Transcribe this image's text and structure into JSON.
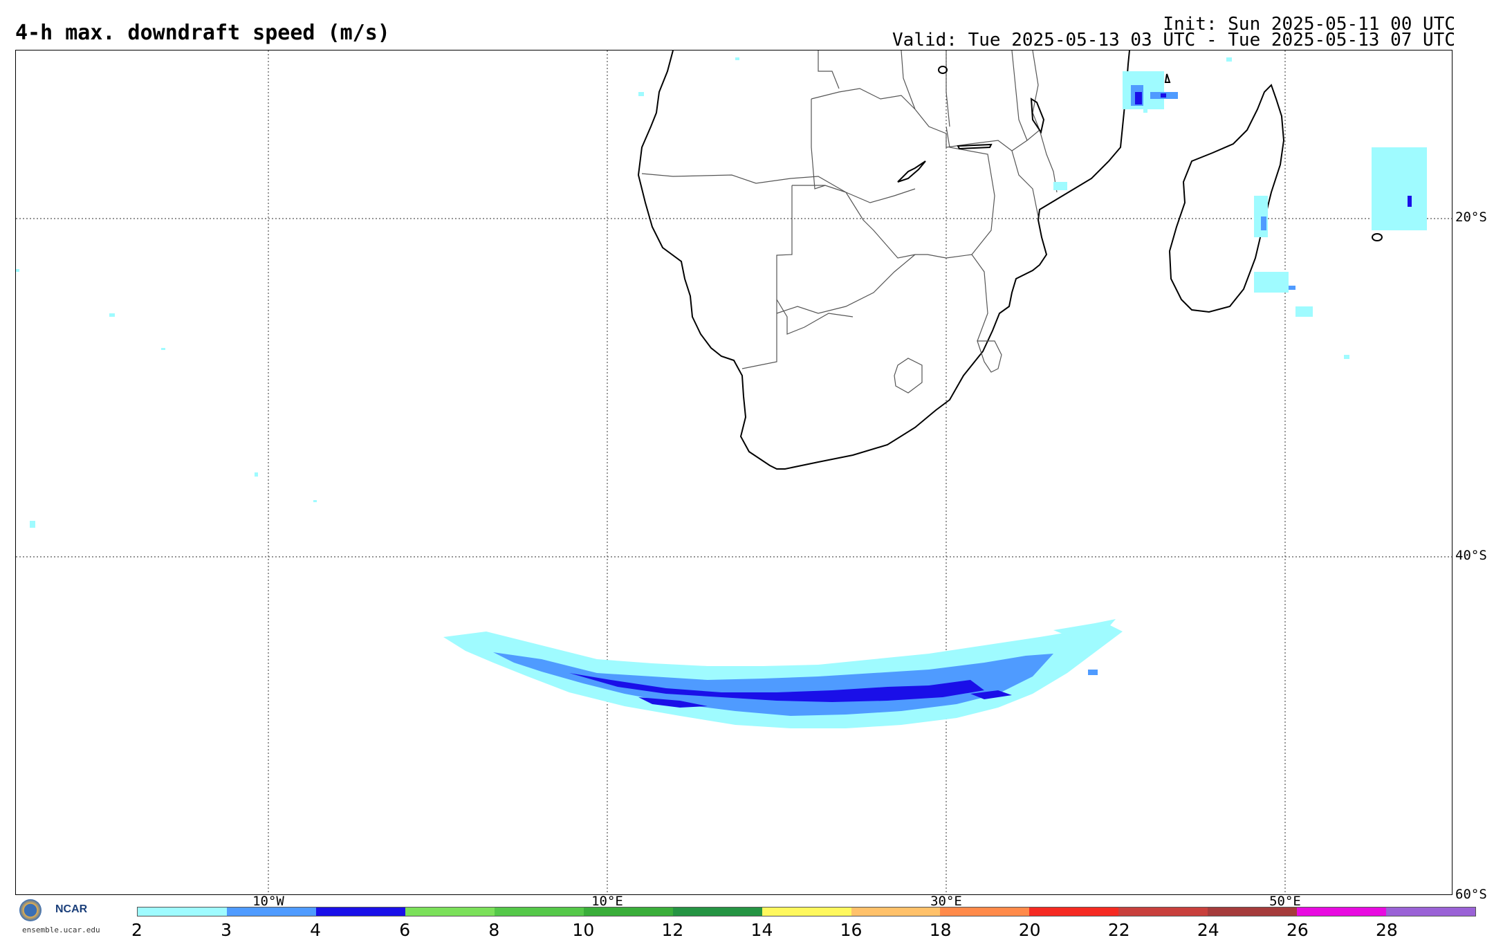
{
  "header": {
    "title": "4-h max. downdraft speed (m/s)",
    "init": "Init: Sun 2025-05-11 00 UTC",
    "valid": "Valid: Tue 2025-05-13 03 UTC - Tue 2025-05-13 07 UTC"
  },
  "map": {
    "lat_labels": [
      "20°S",
      "40°S",
      "60°S"
    ],
    "lon_labels": [
      "10°W",
      "10°E",
      "30°E",
      "50°E"
    ]
  },
  "colorbar": {
    "ticks": [
      "2",
      "3",
      "4",
      "6",
      "8",
      "10",
      "12",
      "14",
      "16",
      "18",
      "20",
      "22",
      "24",
      "26",
      "28"
    ],
    "colors": [
      "#9ffbff",
      "#4f9bff",
      "#1a0fe8",
      "#7be05a",
      "#55c849",
      "#3aae3a",
      "#259443",
      "#fff85e",
      "#ffc16a",
      "#ff8a4a",
      "#f52a22",
      "#c8403c",
      "#a53b3b",
      "#e80be0",
      "#9a62d6"
    ]
  },
  "logo": {
    "org": "NCAR",
    "url": "ensemble.ucar.edu"
  }
}
